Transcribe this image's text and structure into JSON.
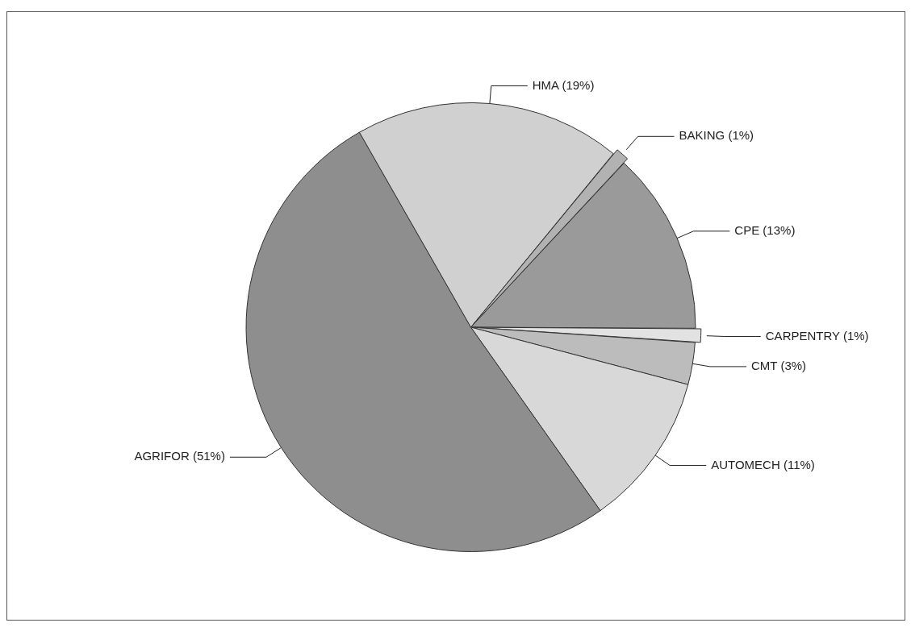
{
  "chart_data": {
    "type": "pie",
    "categories": [
      "CPE",
      "CARPENTRY",
      "CMT",
      "AUTOMECH",
      "AGRIFOR",
      "HMA",
      "BAKING"
    ],
    "values": [
      13,
      1,
      3,
      11,
      51,
      19,
      1
    ],
    "value_labels": [
      "(13%)",
      "(1%)",
      "(3%)",
      "(11%)",
      "(51%)",
      "(19%)",
      "(1%)"
    ],
    "colors": [
      "#9a9a9a",
      "#e2e2e2",
      "#bcbcbc",
      "#d8d8d8",
      "#8e8e8e",
      "#d0d0d0",
      "#b2b2b2"
    ],
    "legend": false
  }
}
